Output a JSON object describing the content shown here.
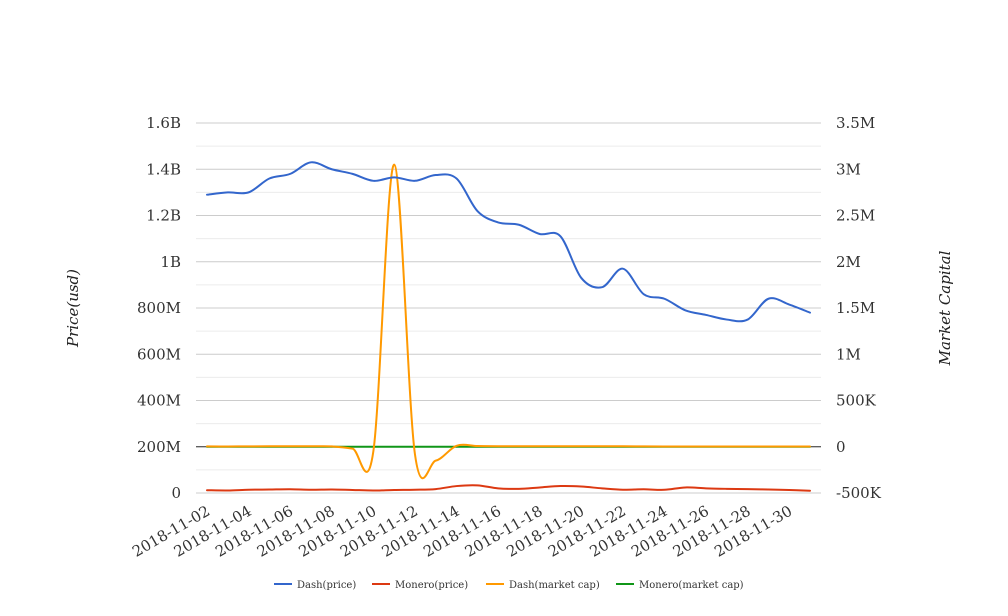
{
  "chart_data": {
    "type": "line",
    "x": [
      "2018-11-02",
      "2018-11-03",
      "2018-11-04",
      "2018-11-05",
      "2018-11-06",
      "2018-11-07",
      "2018-11-08",
      "2018-11-09",
      "2018-11-10",
      "2018-11-11",
      "2018-11-12",
      "2018-11-13",
      "2018-11-14",
      "2018-11-15",
      "2018-11-16",
      "2018-11-17",
      "2018-11-18",
      "2018-11-19",
      "2018-11-20",
      "2018-11-21",
      "2018-11-22",
      "2018-11-23",
      "2018-11-24",
      "2018-11-25",
      "2018-11-26",
      "2018-11-27",
      "2018-11-28",
      "2018-11-29",
      "2018-11-30",
      "2018-12-01"
    ],
    "x_tick_labels": [
      "2018-11-02",
      "2018-11-04",
      "2018-11-06",
      "2018-11-08",
      "2018-11-10",
      "2018-11-12",
      "2018-11-14",
      "2018-11-16",
      "2018-11-18",
      "2018-11-20",
      "2018-11-22",
      "2018-11-24",
      "2018-11-26",
      "2018-11-28",
      "2018-11-30"
    ],
    "left_axis": {
      "label": "Price(usd)",
      "range": [
        0,
        1600000000
      ],
      "ticks": [
        0,
        200000000,
        400000000,
        600000000,
        800000000,
        1000000000,
        1200000000,
        1400000000,
        1600000000
      ],
      "tick_labels": [
        "0",
        "200M",
        "400M",
        "600M",
        "800M",
        "1B",
        "1.2B",
        "1.4B",
        "1.6B"
      ]
    },
    "right_axis": {
      "label": "Market Capital",
      "range": [
        -500000,
        3500000
      ],
      "ticks": [
        -500000,
        0,
        500000,
        1000000,
        1500000,
        2000000,
        2500000,
        3000000,
        3500000
      ],
      "tick_labels": [
        "-500K",
        "0",
        "500K",
        "1M",
        "1.5M",
        "2M",
        "2.5M",
        "3M",
        "3.5M"
      ]
    },
    "series": [
      {
        "name": "Dash(price)",
        "axis": "left",
        "color": "#3366cc",
        "values": [
          1290000000,
          1300000000,
          1300000000,
          1360000000,
          1380000000,
          1430000000,
          1400000000,
          1380000000,
          1350000000,
          1365000000,
          1350000000,
          1375000000,
          1360000000,
          1220000000,
          1170000000,
          1160000000,
          1120000000,
          1110000000,
          930000000,
          890000000,
          970000000,
          860000000,
          840000000,
          790000000,
          770000000,
          750000000,
          750000000,
          840000000,
          815000000,
          780000000
        ]
      },
      {
        "name": "Monero(price)",
        "axis": "left",
        "color": "#dc3912",
        "values": [
          12000000,
          11000000,
          14000000,
          15000000,
          16000000,
          14000000,
          15000000,
          13000000,
          11000000,
          13000000,
          14000000,
          17000000,
          30000000,
          33000000,
          20000000,
          18000000,
          24000000,
          30000000,
          28000000,
          20000000,
          14000000,
          16000000,
          14000000,
          24000000,
          20000000,
          18000000,
          17000000,
          15000000,
          13000000,
          10000000
        ]
      },
      {
        "name": "Dash(market cap)",
        "axis": "right",
        "color": "#ff9900",
        "values": [
          4000,
          3000,
          4000,
          5000,
          6000,
          5000,
          4000,
          -20000,
          -50000,
          3050000,
          -80000,
          -150000,
          10000,
          8000,
          6000,
          5000,
          5000,
          5000,
          6000,
          5000,
          5000,
          4000,
          3000,
          2000,
          3000,
          2000,
          3000,
          3000,
          2000,
          3000
        ]
      },
      {
        "name": "Monero(market cap)",
        "axis": "right",
        "color": "#109618",
        "values": [
          0,
          0,
          0,
          0,
          0,
          0,
          0,
          0,
          0,
          0,
          0,
          0,
          0,
          0,
          0,
          0,
          0,
          0,
          0,
          0,
          0,
          0,
          0,
          0,
          0,
          0,
          0,
          0,
          0,
          0
        ]
      }
    ],
    "grid": true,
    "legend_position": "bottom"
  }
}
